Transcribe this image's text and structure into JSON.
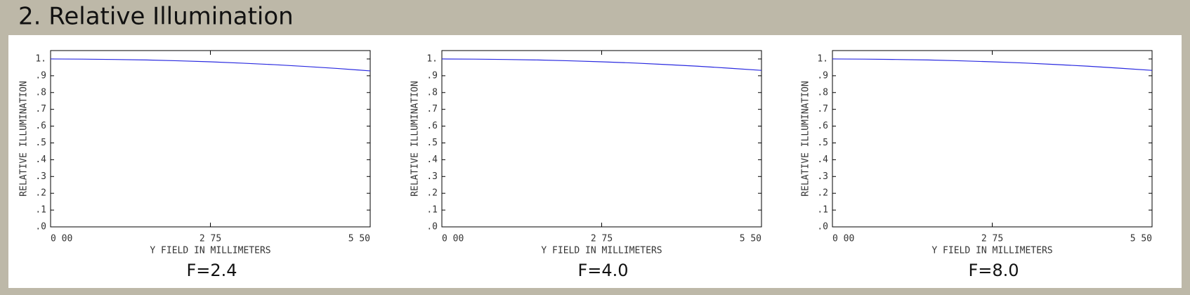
{
  "title": "2. Relative Illumination",
  "chart_data": [
    {
      "type": "line",
      "title": "F=2.4",
      "xlabel": "Y FIELD IN MILLIMETERS",
      "ylabel": "RELATIVE ILLUMINATION",
      "x": [
        0,
        0.55,
        1.1,
        1.65,
        2.2,
        2.75,
        3.3,
        3.85,
        4.4,
        4.95,
        5.5
      ],
      "series": [
        {
          "color": "#2a2ae0",
          "values": [
            1.0,
            0.999,
            0.997,
            0.994,
            0.989,
            0.983,
            0.975,
            0.966,
            0.955,
            0.943,
            0.929
          ]
        }
      ],
      "xlim": [
        0,
        5.5
      ],
      "ylim": [
        0,
        1.05
      ],
      "xticks": [
        {
          "value": 0,
          "label": "0 00"
        },
        {
          "value": 2.75,
          "label": "2 75"
        },
        {
          "value": 5.5,
          "label": "5 50"
        }
      ],
      "yticks": [
        {
          "value": 0,
          "label": ".0"
        },
        {
          "value": 0.1,
          "label": ".1"
        },
        {
          "value": 0.2,
          "label": ".2"
        },
        {
          "value": 0.3,
          "label": ".3"
        },
        {
          "value": 0.4,
          "label": ".4"
        },
        {
          "value": 0.5,
          "label": ".5"
        },
        {
          "value": 0.6,
          "label": ".6"
        },
        {
          "value": 0.7,
          "label": ".7"
        },
        {
          "value": 0.8,
          "label": ".8"
        },
        {
          "value": 0.9,
          "label": ".9"
        },
        {
          "value": 1,
          "label": "1."
        }
      ]
    },
    {
      "type": "line",
      "title": "F=4.0",
      "xlabel": "Y FIELD IN MILLIMETERS",
      "ylabel": "RELATIVE ILLUMINATION",
      "x": [
        0,
        0.55,
        1.1,
        1.65,
        2.2,
        2.75,
        3.3,
        3.85,
        4.4,
        4.95,
        5.5
      ],
      "series": [
        {
          "color": "#2a2ae0",
          "values": [
            1.0,
            0.999,
            0.997,
            0.994,
            0.989,
            0.983,
            0.976,
            0.967,
            0.957,
            0.945,
            0.932
          ]
        }
      ],
      "xlim": [
        0,
        5.5
      ],
      "ylim": [
        0,
        1.05
      ],
      "xticks": [
        {
          "value": 0,
          "label": "0 00"
        },
        {
          "value": 2.75,
          "label": "2 75"
        },
        {
          "value": 5.5,
          "label": "5 50"
        }
      ],
      "yticks": [
        {
          "value": 0,
          "label": ".0"
        },
        {
          "value": 0.1,
          "label": ".1"
        },
        {
          "value": 0.2,
          "label": ".2"
        },
        {
          "value": 0.3,
          "label": ".3"
        },
        {
          "value": 0.4,
          "label": ".4"
        },
        {
          "value": 0.5,
          "label": ".5"
        },
        {
          "value": 0.6,
          "label": ".6"
        },
        {
          "value": 0.7,
          "label": ".7"
        },
        {
          "value": 0.8,
          "label": ".8"
        },
        {
          "value": 0.9,
          "label": ".9"
        },
        {
          "value": 1,
          "label": "1."
        }
      ]
    },
    {
      "type": "line",
      "title": "F=8.0",
      "xlabel": "Y FIELD IN MILLIMETERS",
      "ylabel": "RELATIVE ILLUMINATION",
      "x": [
        0,
        0.55,
        1.1,
        1.65,
        2.2,
        2.75,
        3.3,
        3.85,
        4.4,
        4.95,
        5.5
      ],
      "series": [
        {
          "color": "#2a2ae0",
          "values": [
            1.0,
            0.999,
            0.997,
            0.994,
            0.989,
            0.983,
            0.976,
            0.967,
            0.957,
            0.945,
            0.932
          ]
        }
      ],
      "xlim": [
        0,
        5.5
      ],
      "ylim": [
        0,
        1.05
      ],
      "xticks": [
        {
          "value": 0,
          "label": "0 00"
        },
        {
          "value": 2.75,
          "label": "2 75"
        },
        {
          "value": 5.5,
          "label": "5 50"
        }
      ],
      "yticks": [
        {
          "value": 0,
          "label": ".0"
        },
        {
          "value": 0.1,
          "label": ".1"
        },
        {
          "value": 0.2,
          "label": ".2"
        },
        {
          "value": 0.3,
          "label": ".3"
        },
        {
          "value": 0.4,
          "label": ".4"
        },
        {
          "value": 0.5,
          "label": ".5"
        },
        {
          "value": 0.6,
          "label": ".6"
        },
        {
          "value": 0.7,
          "label": ".7"
        },
        {
          "value": 0.8,
          "label": ".8"
        },
        {
          "value": 0.9,
          "label": ".9"
        },
        {
          "value": 1,
          "label": "1."
        }
      ]
    }
  ]
}
